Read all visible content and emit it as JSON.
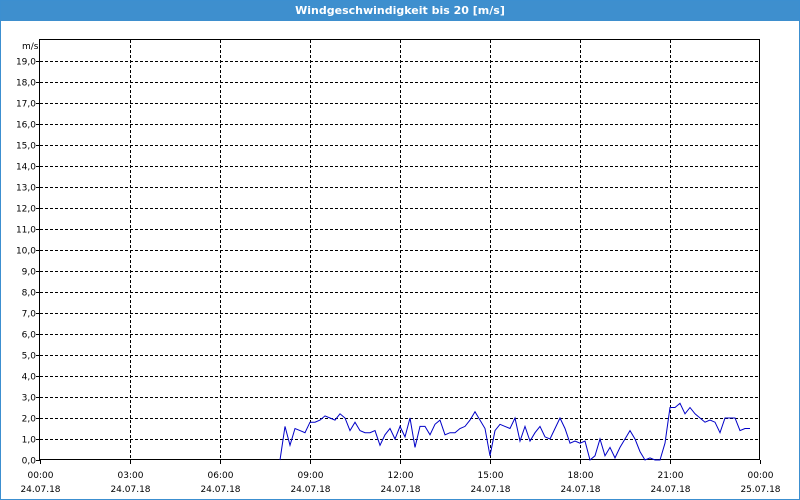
{
  "window": {
    "title": "Windgeschwindigkeit bis 20 [m/s]"
  },
  "colors": {
    "titlebar": "#3e8fce",
    "line": "#0000c8",
    "grid": "#000000"
  },
  "chart_data": {
    "type": "line",
    "title": "Windgeschwindigkeit bis 20 [m/s]",
    "ylabel": "m/s",
    "xlabel": "",
    "ylim": [
      0,
      20
    ],
    "y_ticks": [
      "0,0",
      "1,0",
      "2,0",
      "3,0",
      "4,0",
      "5,0",
      "6,0",
      "7,0",
      "8,0",
      "9,0",
      "10,0",
      "11,0",
      "12,0",
      "13,0",
      "14,0",
      "15,0",
      "16,0",
      "17,0",
      "18,0",
      "19,0"
    ],
    "xlim": [
      "24.07.18 00:00",
      "25.07.18 00:00"
    ],
    "x_ticks": [
      {
        "time": "00:00",
        "date": "24.07.18"
      },
      {
        "time": "03:00",
        "date": "24.07.18"
      },
      {
        "time": "06:00",
        "date": "24.07.18"
      },
      {
        "time": "09:00",
        "date": "24.07.18"
      },
      {
        "time": "12:00",
        "date": "24.07.18"
      },
      {
        "time": "15:00",
        "date": "24.07.18"
      },
      {
        "time": "18:00",
        "date": "24.07.18"
      },
      {
        "time": "21:00",
        "date": "24.07.18"
      },
      {
        "time": "00:00",
        "date": "25.07.18"
      }
    ],
    "grid": true,
    "series": [
      {
        "points": [
          [
            "08:00",
            0.0
          ],
          [
            "08:10",
            1.6
          ],
          [
            "08:20",
            0.7
          ],
          [
            "08:30",
            1.5
          ],
          [
            "08:40",
            1.4
          ],
          [
            "08:50",
            1.3
          ],
          [
            "09:00",
            1.8
          ],
          [
            "09:10",
            1.8
          ],
          [
            "09:20",
            1.9
          ],
          [
            "09:30",
            2.1
          ],
          [
            "09:40",
            2.0
          ],
          [
            "09:50",
            1.9
          ],
          [
            "10:00",
            2.2
          ],
          [
            "10:10",
            2.0
          ],
          [
            "10:20",
            1.4
          ],
          [
            "10:30",
            1.8
          ],
          [
            "10:40",
            1.4
          ],
          [
            "10:50",
            1.3
          ],
          [
            "11:00",
            1.3
          ],
          [
            "11:10",
            1.4
          ],
          [
            "11:20",
            0.7
          ],
          [
            "11:30",
            1.2
          ],
          [
            "11:40",
            1.5
          ],
          [
            "11:50",
            1.0
          ],
          [
            "12:00",
            1.6
          ],
          [
            "12:10",
            1.1
          ],
          [
            "12:20",
            2.0
          ],
          [
            "12:30",
            0.6
          ],
          [
            "12:40",
            1.6
          ],
          [
            "12:50",
            1.6
          ],
          [
            "13:00",
            1.2
          ],
          [
            "13:10",
            1.7
          ],
          [
            "13:20",
            1.9
          ],
          [
            "13:30",
            1.2
          ],
          [
            "13:40",
            1.3
          ],
          [
            "13:50",
            1.3
          ],
          [
            "14:00",
            1.5
          ],
          [
            "14:10",
            1.6
          ],
          [
            "14:20",
            1.9
          ],
          [
            "14:30",
            2.3
          ],
          [
            "14:40",
            1.9
          ],
          [
            "14:50",
            1.5
          ],
          [
            "15:00",
            0.2
          ],
          [
            "15:10",
            1.4
          ],
          [
            "15:20",
            1.7
          ],
          [
            "15:30",
            1.6
          ],
          [
            "15:40",
            1.5
          ],
          [
            "15:50",
            2.0
          ],
          [
            "16:00",
            0.9
          ],
          [
            "16:10",
            1.6
          ],
          [
            "16:20",
            0.9
          ],
          [
            "16:30",
            1.3
          ],
          [
            "16:40",
            1.6
          ],
          [
            "16:50",
            1.1
          ],
          [
            "17:00",
            1.0
          ],
          [
            "17:10",
            1.5
          ],
          [
            "17:20",
            2.0
          ],
          [
            "17:30",
            1.5
          ],
          [
            "17:40",
            0.8
          ],
          [
            "17:50",
            0.9
          ],
          [
            "18:00",
            0.8
          ],
          [
            "18:10",
            0.9
          ],
          [
            "18:20",
            0.0
          ],
          [
            "18:30",
            0.2
          ],
          [
            "18:40",
            1.0
          ],
          [
            "18:50",
            0.2
          ],
          [
            "19:00",
            0.6
          ],
          [
            "19:10",
            0.1
          ],
          [
            "19:20",
            0.6
          ],
          [
            "19:30",
            1.0
          ],
          [
            "19:40",
            1.4
          ],
          [
            "19:50",
            1.0
          ],
          [
            "20:00",
            0.4
          ],
          [
            "20:10",
            0.0
          ],
          [
            "20:20",
            0.1
          ],
          [
            "20:30",
            0.0
          ],
          [
            "20:40",
            0.0
          ],
          [
            "20:50",
            0.8
          ],
          [
            "21:00",
            2.5
          ],
          [
            "21:10",
            2.5
          ],
          [
            "21:20",
            2.7
          ],
          [
            "21:30",
            2.2
          ],
          [
            "21:40",
            2.5
          ],
          [
            "21:50",
            2.2
          ],
          [
            "22:00",
            2.0
          ],
          [
            "22:10",
            1.8
          ],
          [
            "22:20",
            1.9
          ],
          [
            "22:30",
            1.8
          ],
          [
            "22:40",
            1.3
          ],
          [
            "22:50",
            2.0
          ],
          [
            "23:00",
            2.0
          ],
          [
            "23:10",
            2.0
          ],
          [
            "23:20",
            1.4
          ],
          [
            "23:30",
            1.5
          ],
          [
            "23:40",
            1.5
          ]
        ]
      }
    ]
  }
}
